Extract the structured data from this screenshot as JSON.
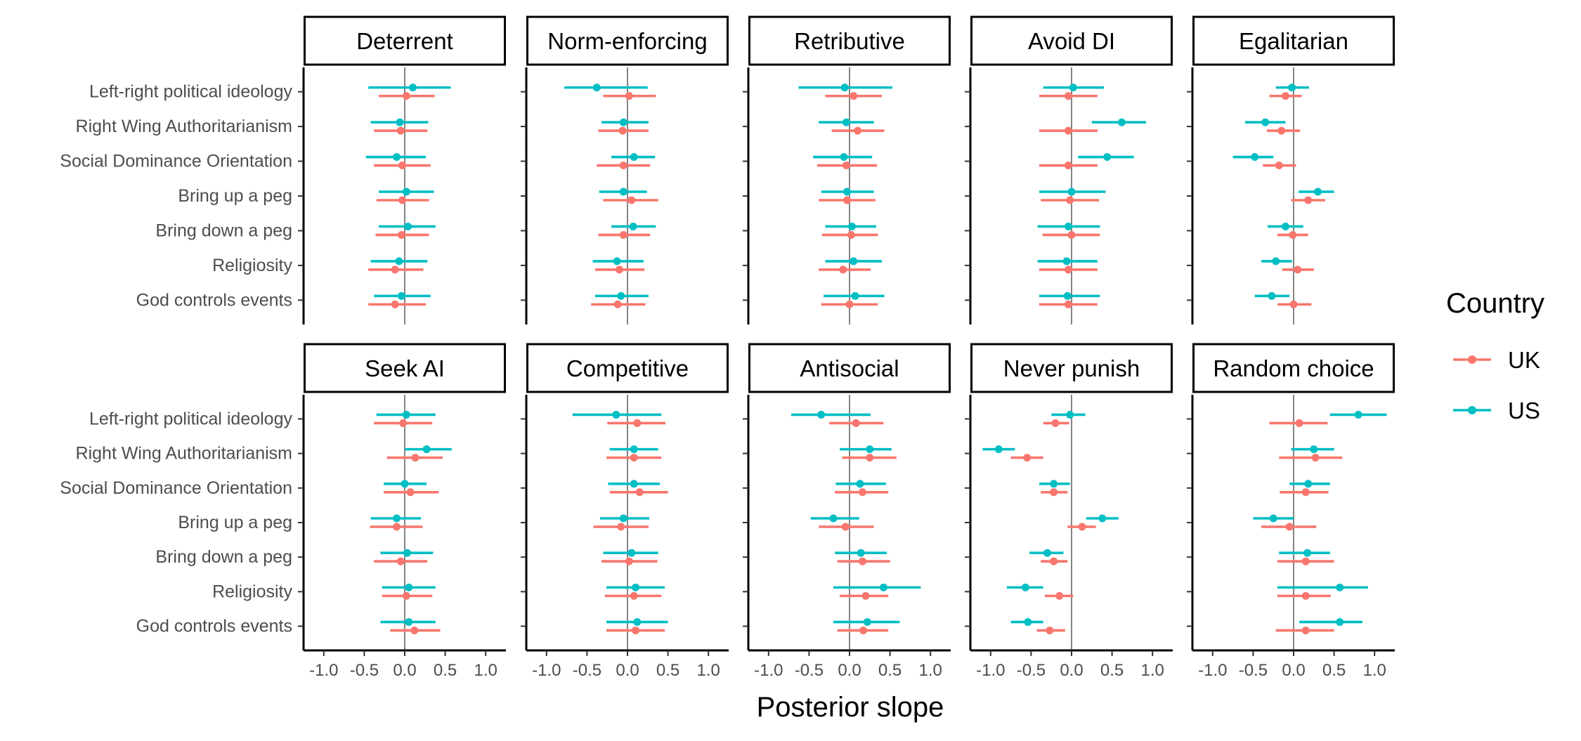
{
  "chart_data": {
    "type": "forest",
    "xlabel": "Posterior slope",
    "xlim": [
      -1.25,
      1.25
    ],
    "xticks": [
      -1.0,
      -0.5,
      0.0,
      0.5,
      1.0
    ],
    "xtick_labels": [
      "-1.0",
      "-0.5",
      "0.0",
      "0.5",
      "1.0"
    ],
    "reference_line": 0,
    "grid": false,
    "legend": {
      "title": "Country",
      "position": "right",
      "entries": [
        {
          "name": "UK",
          "color": "#F8766D"
        },
        {
          "name": "US",
          "color": "#00BFC4"
        }
      ]
    },
    "categories": [
      "Left-right political ideology",
      "Right Wing Authoritarianism",
      "Social Dominance Orientation",
      "Bring up a peg",
      "Bring down a peg",
      "Religiosity",
      "God controls events"
    ],
    "panels": [
      {
        "title": "Deterrent",
        "series": [
          {
            "name": "UK",
            "est": [
              0.02,
              -0.05,
              -0.03,
              -0.03,
              -0.04,
              -0.12,
              -0.12
            ],
            "lo": [
              -0.32,
              -0.38,
              -0.38,
              -0.35,
              -0.36,
              -0.45,
              -0.45
            ],
            "hi": [
              0.37,
              0.28,
              0.32,
              0.3,
              0.3,
              0.23,
              0.26
            ]
          },
          {
            "name": "US",
            "est": [
              0.1,
              -0.06,
              -0.1,
              0.02,
              0.04,
              -0.07,
              -0.04
            ],
            "lo": [
              -0.45,
              -0.42,
              -0.48,
              -0.32,
              -0.32,
              -0.42,
              -0.38
            ],
            "hi": [
              0.57,
              0.29,
              0.26,
              0.36,
              0.38,
              0.28,
              0.32
            ]
          }
        ]
      },
      {
        "title": "Norm-enforcing",
        "series": [
          {
            "name": "UK",
            "est": [
              0.02,
              -0.06,
              -0.05,
              0.05,
              -0.05,
              -0.1,
              -0.12
            ],
            "lo": [
              -0.3,
              -0.36,
              -0.38,
              -0.3,
              -0.36,
              -0.4,
              -0.45
            ],
            "hi": [
              0.35,
              0.26,
              0.28,
              0.38,
              0.28,
              0.21,
              0.22
            ]
          },
          {
            "name": "US",
            "est": [
              -0.38,
              -0.05,
              0.08,
              -0.05,
              0.07,
              -0.13,
              -0.08
            ],
            "lo": [
              -0.78,
              -0.32,
              -0.2,
              -0.35,
              -0.2,
              -0.43,
              -0.4
            ],
            "hi": [
              0.25,
              0.26,
              0.34,
              0.24,
              0.35,
              0.2,
              0.26
            ]
          }
        ]
      },
      {
        "title": "Retributive",
        "series": [
          {
            "name": "UK",
            "est": [
              0.05,
              0.1,
              -0.04,
              -0.03,
              0.02,
              -0.08,
              0.0
            ],
            "lo": [
              -0.3,
              -0.22,
              -0.4,
              -0.38,
              -0.34,
              -0.38,
              -0.35
            ],
            "hi": [
              0.4,
              0.43,
              0.34,
              0.32,
              0.35,
              0.26,
              0.35
            ]
          },
          {
            "name": "US",
            "est": [
              -0.06,
              -0.04,
              -0.07,
              -0.03,
              0.03,
              0.05,
              0.07
            ],
            "lo": [
              -0.63,
              -0.38,
              -0.45,
              -0.35,
              -0.3,
              -0.3,
              -0.32
            ],
            "hi": [
              0.53,
              0.3,
              0.28,
              0.3,
              0.33,
              0.4,
              0.43
            ]
          }
        ]
      },
      {
        "title": "Avoid DI",
        "series": [
          {
            "name": "UK",
            "est": [
              -0.04,
              -0.04,
              -0.04,
              -0.02,
              0.0,
              -0.04,
              -0.04
            ],
            "lo": [
              -0.4,
              -0.4,
              -0.4,
              -0.38,
              -0.36,
              -0.4,
              -0.4
            ],
            "hi": [
              0.32,
              0.32,
              0.32,
              0.34,
              0.35,
              0.32,
              0.32
            ]
          },
          {
            "name": "US",
            "est": [
              0.02,
              0.62,
              0.44,
              0.0,
              -0.04,
              -0.06,
              -0.05
            ],
            "lo": [
              -0.35,
              0.25,
              0.08,
              -0.4,
              -0.42,
              -0.42,
              -0.4
            ],
            "hi": [
              0.4,
              0.92,
              0.77,
              0.42,
              0.35,
              0.32,
              0.35
            ]
          }
        ]
      },
      {
        "title": "Egalitarian",
        "series": [
          {
            "name": "UK",
            "est": [
              -0.1,
              -0.15,
              -0.18,
              0.18,
              -0.01,
              0.05,
              0.0
            ],
            "lo": [
              -0.3,
              -0.33,
              -0.38,
              -0.03,
              -0.2,
              -0.14,
              -0.2
            ],
            "hi": [
              0.1,
              0.08,
              0.03,
              0.39,
              0.18,
              0.25,
              0.22
            ]
          },
          {
            "name": "US",
            "est": [
              -0.02,
              -0.35,
              -0.48,
              0.3,
              -0.1,
              -0.22,
              -0.27
            ],
            "lo": [
              -0.22,
              -0.6,
              -0.75,
              0.06,
              -0.32,
              -0.4,
              -0.48
            ],
            "hi": [
              0.19,
              -0.1,
              -0.25,
              0.5,
              0.12,
              -0.02,
              -0.05
            ]
          }
        ]
      },
      {
        "title": "Seek AI",
        "series": [
          {
            "name": "UK",
            "est": [
              -0.02,
              0.13,
              0.07,
              -0.1,
              -0.05,
              0.02,
              0.12
            ],
            "lo": [
              -0.38,
              -0.22,
              -0.26,
              -0.43,
              -0.38,
              -0.28,
              -0.18
            ],
            "hi": [
              0.34,
              0.47,
              0.42,
              0.22,
              0.28,
              0.34,
              0.44
            ]
          },
          {
            "name": "US",
            "est": [
              0.02,
              0.27,
              0.0,
              -0.1,
              0.03,
              0.05,
              0.05
            ],
            "lo": [
              -0.35,
              0.0,
              -0.26,
              -0.42,
              -0.3,
              -0.28,
              -0.3
            ],
            "hi": [
              0.38,
              0.58,
              0.27,
              0.2,
              0.35,
              0.38,
              0.38
            ]
          }
        ]
      },
      {
        "title": "Competitive",
        "series": [
          {
            "name": "UK",
            "est": [
              0.12,
              0.08,
              0.15,
              -0.08,
              0.02,
              0.08,
              0.1
            ],
            "lo": [
              -0.25,
              -0.26,
              -0.22,
              -0.42,
              -0.32,
              -0.28,
              -0.26
            ],
            "hi": [
              0.47,
              0.42,
              0.5,
              0.26,
              0.37,
              0.42,
              0.46
            ]
          },
          {
            "name": "US",
            "est": [
              -0.14,
              0.08,
              0.08,
              -0.05,
              0.05,
              0.1,
              0.12
            ],
            "lo": [
              -0.68,
              -0.22,
              -0.24,
              -0.34,
              -0.3,
              -0.26,
              -0.26
            ],
            "hi": [
              0.42,
              0.38,
              0.4,
              0.27,
              0.38,
              0.46,
              0.5
            ]
          }
        ]
      },
      {
        "title": "Antisocial",
        "series": [
          {
            "name": "UK",
            "est": [
              0.08,
              0.25,
              0.16,
              -0.05,
              0.16,
              0.2,
              0.17
            ],
            "lo": [
              -0.25,
              -0.09,
              -0.18,
              -0.38,
              -0.15,
              -0.12,
              -0.15
            ],
            "hi": [
              0.42,
              0.58,
              0.48,
              0.3,
              0.5,
              0.48,
              0.48
            ]
          },
          {
            "name": "US",
            "est": [
              -0.35,
              0.25,
              0.13,
              -0.2,
              0.14,
              0.42,
              0.22
            ],
            "lo": [
              -0.72,
              -0.12,
              -0.17,
              -0.48,
              -0.18,
              -0.2,
              -0.2
            ],
            "hi": [
              0.26,
              0.52,
              0.45,
              0.12,
              0.46,
              0.88,
              0.62
            ]
          }
        ]
      },
      {
        "title": "Never punish",
        "series": [
          {
            "name": "UK",
            "est": [
              -0.2,
              -0.55,
              -0.22,
              0.13,
              -0.22,
              -0.15,
              -0.27
            ],
            "lo": [
              -0.35,
              -0.75,
              -0.38,
              -0.05,
              -0.38,
              -0.33,
              -0.43
            ],
            "hi": [
              -0.03,
              -0.35,
              -0.05,
              0.3,
              -0.05,
              0.02,
              -0.08
            ]
          },
          {
            "name": "US",
            "est": [
              -0.02,
              -0.9,
              -0.22,
              0.38,
              -0.3,
              -0.57,
              -0.54
            ],
            "lo": [
              -0.25,
              -1.1,
              -0.4,
              0.18,
              -0.52,
              -0.8,
              -0.75
            ],
            "hi": [
              0.17,
              -0.7,
              -0.02,
              0.58,
              -0.1,
              -0.35,
              -0.35
            ]
          }
        ]
      },
      {
        "title": "Random choice",
        "series": [
          {
            "name": "UK",
            "est": [
              0.07,
              0.27,
              0.15,
              -0.05,
              0.15,
              0.15,
              0.15
            ],
            "lo": [
              -0.3,
              -0.18,
              -0.17,
              -0.4,
              -0.2,
              -0.2,
              -0.22
            ],
            "hi": [
              0.42,
              0.6,
              0.43,
              0.28,
              0.5,
              0.46,
              0.5
            ]
          },
          {
            "name": "US",
            "est": [
              0.8,
              0.25,
              0.18,
              -0.25,
              0.17,
              0.57,
              0.57
            ],
            "lo": [
              0.45,
              -0.03,
              -0.05,
              -0.5,
              -0.18,
              -0.2,
              0.07
            ],
            "hi": [
              1.15,
              0.5,
              0.45,
              0.0,
              0.45,
              0.92,
              0.85
            ]
          }
        ]
      }
    ]
  }
}
